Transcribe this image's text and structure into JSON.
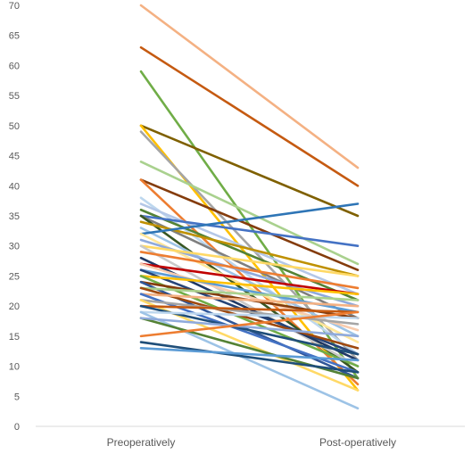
{
  "chart_data": {
    "type": "line",
    "title": "",
    "xlabel": "",
    "ylabel": "",
    "categories": [
      "Preoperatively",
      "Post-operatively"
    ],
    "ylim": [
      0,
      70
    ],
    "yticks": [
      0,
      5,
      10,
      15,
      20,
      25,
      30,
      35,
      40,
      45,
      50,
      55,
      60,
      65,
      70
    ],
    "grid": false,
    "legend": "none",
    "series": [
      {
        "values": [
          70,
          43
        ],
        "color": "#F4B183"
      },
      {
        "values": [
          63,
          40
        ],
        "color": "#C55A11"
      },
      {
        "values": [
          59,
          8
        ],
        "color": "#70AD47"
      },
      {
        "values": [
          50,
          35
        ],
        "color": "#7F6000"
      },
      {
        "values": [
          50,
          6
        ],
        "color": "#FFC000"
      },
      {
        "values": [
          49,
          11
        ],
        "color": "#A5A5A5"
      },
      {
        "values": [
          44,
          27
        ],
        "color": "#A9D18E"
      },
      {
        "values": [
          41,
          26
        ],
        "color": "#843C0C"
      },
      {
        "values": [
          41,
          7
        ],
        "color": "#ED7D31"
      },
      {
        "values": [
          38,
          12
        ],
        "color": "#BDD7EE"
      },
      {
        "values": [
          37,
          22
        ],
        "color": "#B4C7E7"
      },
      {
        "values": [
          36,
          21
        ],
        "color": "#548235"
      },
      {
        "values": [
          35,
          30
        ],
        "color": "#4472C4"
      },
      {
        "values": [
          35,
          18
        ],
        "color": "#7F7F7F"
      },
      {
        "values": [
          35,
          9
        ],
        "color": "#375623"
      },
      {
        "values": [
          34,
          25
        ],
        "color": "#BF9000"
      },
      {
        "values": [
          33,
          15
        ],
        "color": "#9DC3E6"
      },
      {
        "values": [
          32,
          37
        ],
        "color": "#2E75B6"
      },
      {
        "values": [
          32,
          14
        ],
        "color": "#FFE699"
      },
      {
        "values": [
          31,
          20
        ],
        "color": "#8FAADC"
      },
      {
        "values": [
          30,
          25
        ],
        "color": "#FFD966"
      },
      {
        "values": [
          30,
          10
        ],
        "color": "#C9C9C9"
      },
      {
        "values": [
          29,
          23
        ],
        "color": "#ED7D31"
      },
      {
        "values": [
          28,
          11
        ],
        "color": "#203864"
      },
      {
        "values": [
          27,
          22
        ],
        "color": "#C00000"
      },
      {
        "values": [
          27,
          16
        ],
        "color": "#F8CBAD"
      },
      {
        "values": [
          26,
          19
        ],
        "color": "#5B9BD5"
      },
      {
        "values": [
          26,
          12
        ],
        "color": "#264478"
      },
      {
        "values": [
          25,
          22
        ],
        "color": "#FFC000"
      },
      {
        "values": [
          25,
          10
        ],
        "color": "#70AD47"
      },
      {
        "values": [
          24,
          18
        ],
        "color": "#843C0C"
      },
      {
        "values": [
          24,
          8
        ],
        "color": "#2F5597"
      },
      {
        "values": [
          23,
          21
        ],
        "color": "#A9D18E"
      },
      {
        "values": [
          23,
          13
        ],
        "color": "#9E480E"
      },
      {
        "values": [
          22,
          20
        ],
        "color": "#F4B183"
      },
      {
        "values": [
          22,
          9
        ],
        "color": "#4472C4"
      },
      {
        "values": [
          21,
          17
        ],
        "color": "#A5A5A5"
      },
      {
        "values": [
          21,
          6
        ],
        "color": "#FFD966"
      },
      {
        "values": [
          20,
          19
        ],
        "color": "#C55A11"
      },
      {
        "values": [
          20,
          12
        ],
        "color": "#1F4E79"
      },
      {
        "values": [
          19,
          18
        ],
        "color": "#BDD7EE"
      },
      {
        "values": [
          19,
          3
        ],
        "color": "#9DC3E6"
      },
      {
        "values": [
          18,
          8
        ],
        "color": "#548235"
      },
      {
        "values": [
          18,
          15
        ],
        "color": "#8FAADC"
      },
      {
        "values": [
          15,
          19
        ],
        "color": "#ED7D31"
      },
      {
        "values": [
          14,
          9
        ],
        "color": "#1F4E79"
      },
      {
        "values": [
          13,
          11
        ],
        "color": "#5B9BD5"
      }
    ]
  }
}
